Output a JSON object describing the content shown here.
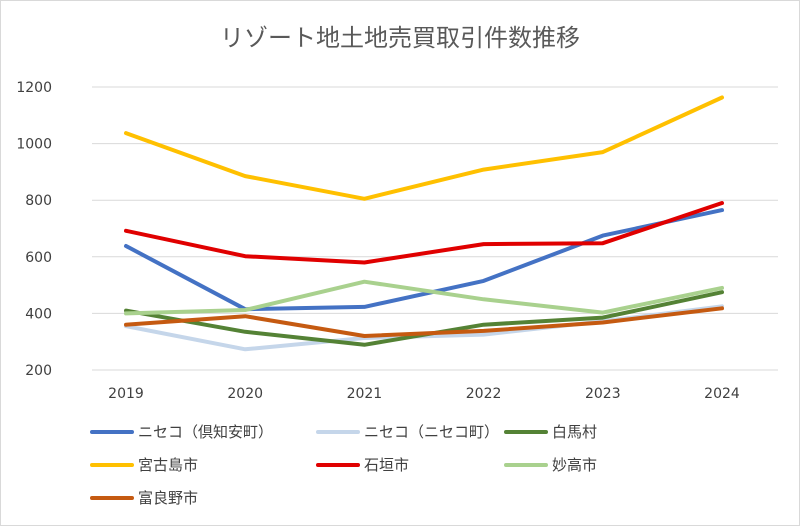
{
  "chart_data": {
    "type": "line",
    "title": "リゾート地土地売買取引件数推移",
    "categories": [
      "2019",
      "2020",
      "2021",
      "2022",
      "2023",
      "2024"
    ],
    "ylim": [
      200,
      1200
    ],
    "yticks": [
      "200",
      "400",
      "600",
      "800",
      "1000",
      "1200"
    ],
    "grid": true,
    "legend_position": "bottom",
    "series": [
      {
        "name": "ニセコ（倶知安町）",
        "color": "#4472c4",
        "values": [
          638,
          415,
          423,
          515,
          675,
          765
        ]
      },
      {
        "name": "ニセコ（ニセコ町）",
        "color": "#c5d6ea",
        "values": [
          355,
          273,
          313,
          325,
          372,
          425
        ]
      },
      {
        "name": "白馬村",
        "color": "#548235",
        "values": [
          410,
          335,
          289,
          360,
          385,
          475
        ]
      },
      {
        "name": "宮古島市",
        "color": "#ffc000",
        "values": [
          1037,
          885,
          805,
          908,
          970,
          1163
        ]
      },
      {
        "name": "石垣市",
        "color": "#e00000",
        "values": [
          692,
          602,
          580,
          645,
          648,
          790
        ]
      },
      {
        "name": "妙高市",
        "color": "#a9d18e",
        "values": [
          400,
          412,
          512,
          450,
          403,
          490
        ]
      },
      {
        "name": "富良野市",
        "color": "#c55a11",
        "values": [
          360,
          390,
          320,
          338,
          368,
          418
        ]
      }
    ]
  }
}
